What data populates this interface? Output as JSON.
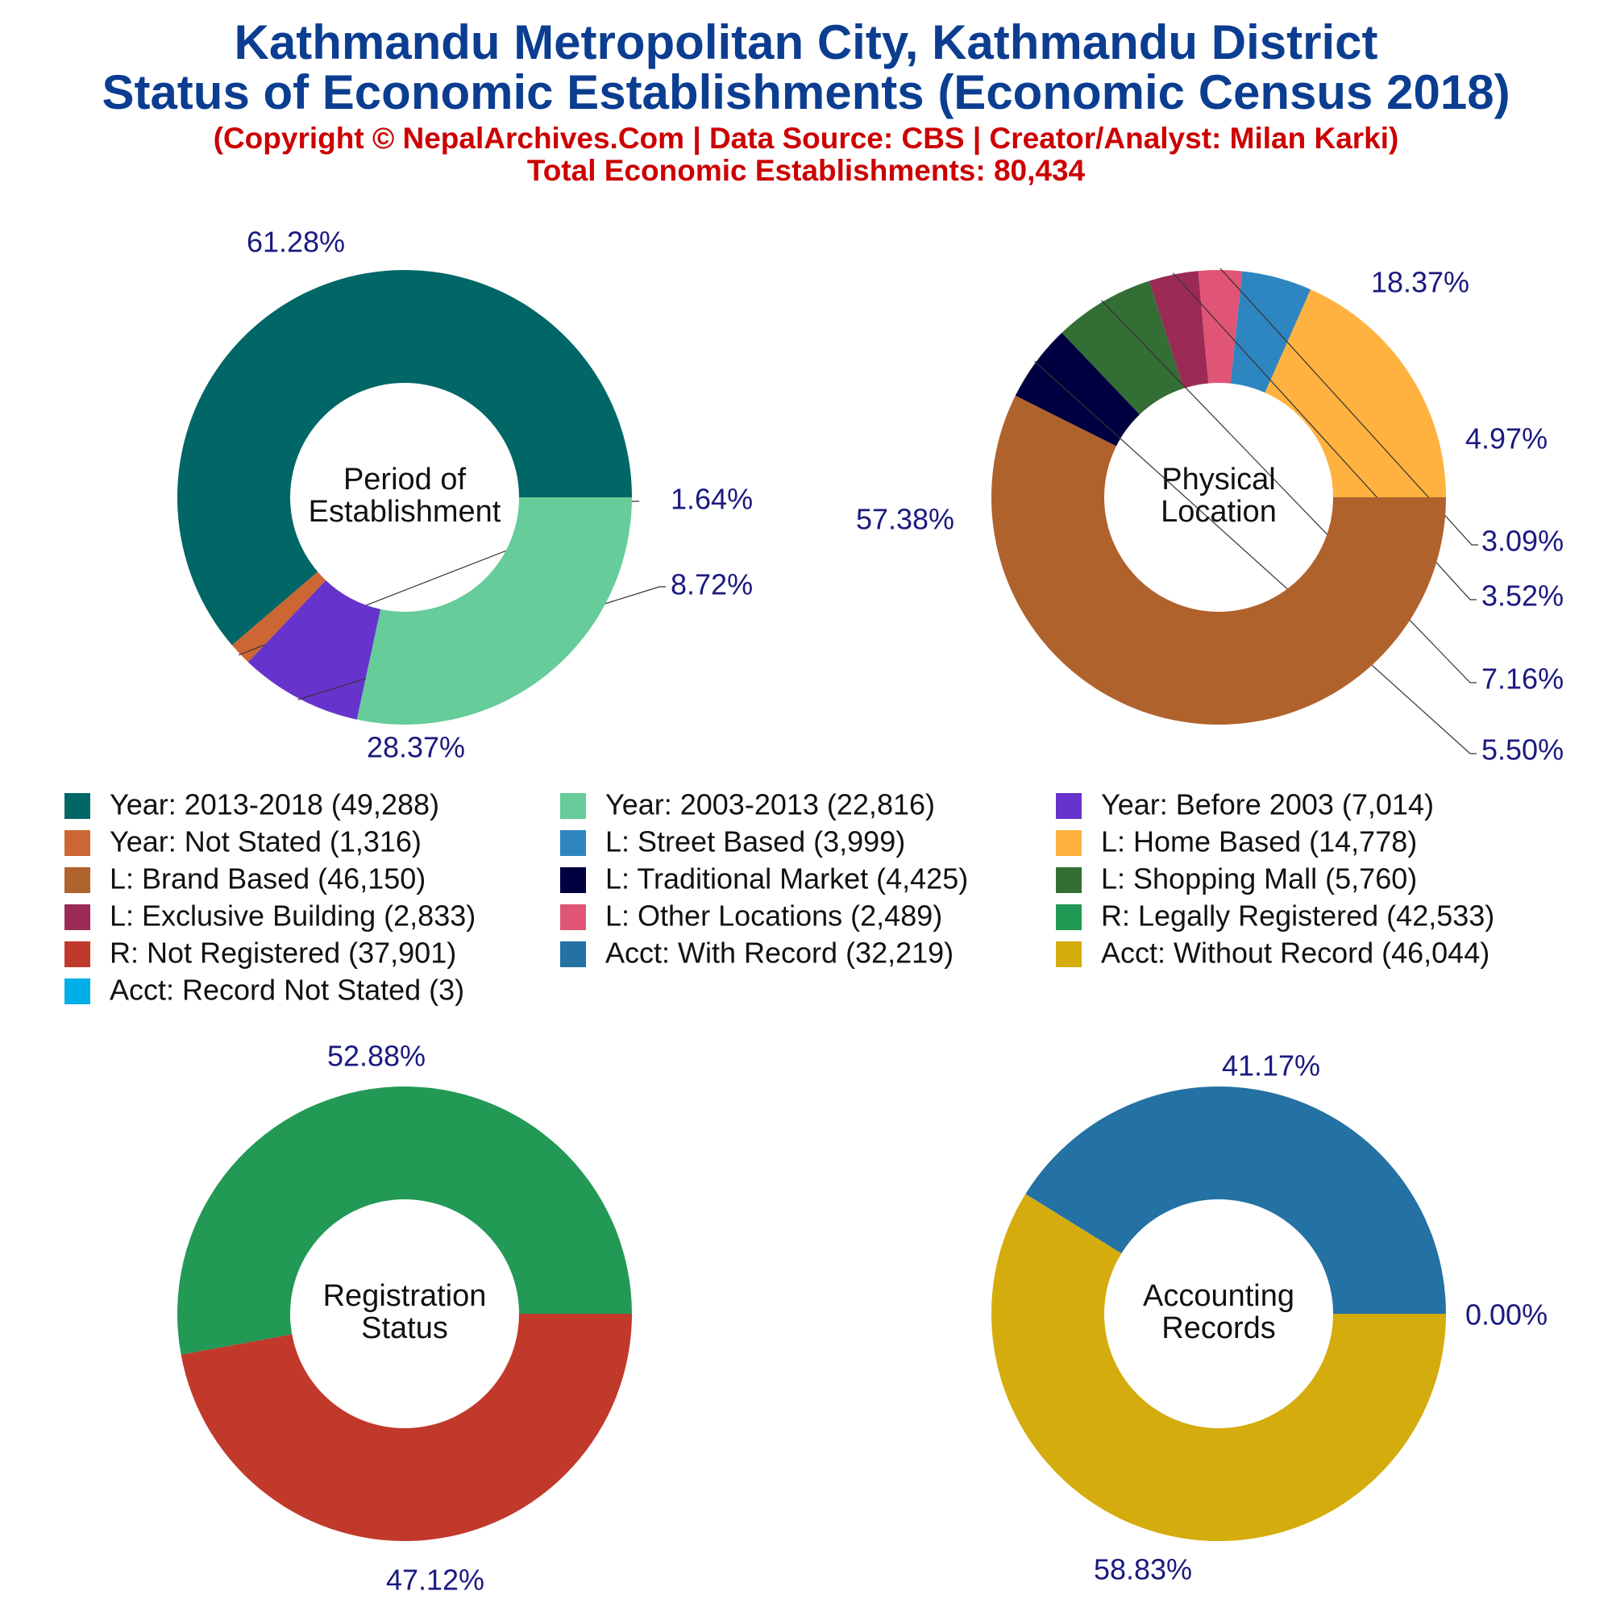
{
  "header": {
    "title_line1": "Kathmandu Metropolitan City, Kathmandu District",
    "title_line2": "Status of Economic Establishments (Economic Census 2018)",
    "credit": "(Copyright © NepalArchives.Com | Data Source: CBS | Creator/Analyst: Milan Karki)",
    "total": "Total Economic Establishments: 80,434"
  },
  "colors": {
    "title": "#0b3d91",
    "subtitle": "#cc0000",
    "pct_label": "#1a1a80"
  },
  "chart_data": [
    {
      "type": "pie",
      "center_label": [
        "Period of",
        "Establishment"
      ],
      "slices": [
        {
          "label": "Year: 2013-2018",
          "value": 49288,
          "percent_label": "61.28%",
          "color": "#006666"
        },
        {
          "label": "Year: Not Stated",
          "value": 1316,
          "percent_label": "1.64%",
          "color": "#cc6633"
        },
        {
          "label": "Year: Before 2003",
          "value": 7014,
          "percent_label": "8.72%",
          "color": "#6633cc"
        },
        {
          "label": "Year: 2003-2013",
          "value": 22816,
          "percent_label": "28.37%",
          "color": "#66cc99"
        }
      ]
    },
    {
      "type": "pie",
      "center_label": [
        "Physical",
        "Location"
      ],
      "slices": [
        {
          "label": "L: Home Based",
          "value": 14778,
          "percent_label": "18.37%",
          "color": "#ffb23f"
        },
        {
          "label": "L: Street Based",
          "value": 3999,
          "percent_label": "4.97%",
          "color": "#2e86c1"
        },
        {
          "label": "L: Other Locations",
          "value": 2489,
          "percent_label": "3.09%",
          "color": "#e05575"
        },
        {
          "label": "L: Exclusive Building",
          "value": 2833,
          "percent_label": "3.52%",
          "color": "#9b2a55"
        },
        {
          "label": "L: Shopping Mall",
          "value": 5760,
          "percent_label": "7.16%",
          "color": "#336e35"
        },
        {
          "label": "L: Traditional Market",
          "value": 4425,
          "percent_label": "5.50%",
          "color": "#000040"
        },
        {
          "label": "L: Brand Based",
          "value": 46150,
          "percent_label": "57.38%",
          "color": "#b0622d"
        }
      ]
    },
    {
      "type": "pie",
      "center_label": [
        "Registration",
        "Status"
      ],
      "slices": [
        {
          "label": "R: Legally Registered",
          "value": 42533,
          "percent_label": "52.88%",
          "color": "#229955"
        },
        {
          "label": "R: Not Registered",
          "value": 37901,
          "percent_label": "47.12%",
          "color": "#c0392b"
        }
      ]
    },
    {
      "type": "pie",
      "center_label": [
        "Accounting",
        "Records"
      ],
      "slices": [
        {
          "label": "Acct: With Record",
          "value": 32219,
          "percent_label": "41.17%",
          "color": "#2471a3"
        },
        {
          "label": "Acct: Record Not Stated",
          "value": 3,
          "percent_label": "0.00%",
          "color": "#00aee8"
        },
        {
          "label": "Acct: Without Record",
          "value": 46044,
          "percent_label": "58.83%",
          "color": "#d4ac0d"
        }
      ]
    }
  ],
  "legend": [
    {
      "text": "Year: 2013-2018 (49,288)",
      "color": "#006666"
    },
    {
      "text": "Year: 2003-2013 (22,816)",
      "color": "#66cc99"
    },
    {
      "text": "Year: Before 2003 (7,014)",
      "color": "#6633cc"
    },
    {
      "text": "Year: Not Stated (1,316)",
      "color": "#cc6633"
    },
    {
      "text": "L: Street Based (3,999)",
      "color": "#2e86c1"
    },
    {
      "text": "L: Home Based (14,778)",
      "color": "#ffb23f"
    },
    {
      "text": "L: Brand Based (46,150)",
      "color": "#b0622d"
    },
    {
      "text": "L: Traditional Market (4,425)",
      "color": "#000040"
    },
    {
      "text": "L: Shopping Mall (5,760)",
      "color": "#336e35"
    },
    {
      "text": "L: Exclusive Building (2,833)",
      "color": "#9b2a55"
    },
    {
      "text": "L: Other Locations (2,489)",
      "color": "#e05575"
    },
    {
      "text": "R: Legally Registered (42,533)",
      "color": "#229955"
    },
    {
      "text": "R: Not Registered (37,901)",
      "color": "#c0392b"
    },
    {
      "text": "Acct: With Record (32,219)",
      "color": "#2471a3"
    },
    {
      "text": "Acct: Without Record (46,044)",
      "color": "#d4ac0d"
    },
    {
      "text": "Acct: Record Not Stated (3)",
      "color": "#00aee8"
    }
  ]
}
